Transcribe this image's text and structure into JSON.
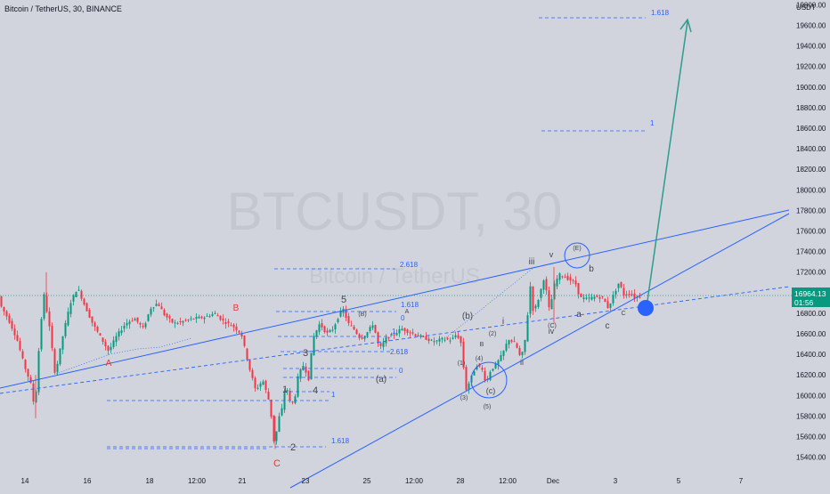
{
  "header": {
    "title": "Bitcoin / TetherUS, 30, BINANCE"
  },
  "watermark": {
    "symbol": "BTCUSDT, 30",
    "name": "Bitcoin / TetherUS"
  },
  "price_axis": {
    "currency": "USDT",
    "last_price": "16964.13",
    "countdown": "01:56",
    "last_price_color": "#089981"
  },
  "colors": {
    "background": "#d1d4dc",
    "candle_up": "#089981",
    "candle_down": "#f23645",
    "trendline": "#2962ff",
    "projection_arrow": "#2e9c8e",
    "wave_label_red": "#e53935",
    "wave_label_dark": "#434651",
    "fib_label": "#2962ff"
  },
  "chart_data": {
    "type": "candlestick",
    "symbol": "BTCUSDT",
    "timeframe": "30",
    "exchange": "BINANCE",
    "x_ticks": [
      "14",
      "16",
      "18",
      "12:00",
      "21",
      "23",
      "25",
      "12:00",
      "28",
      "12:00",
      "Dec",
      "3",
      "5",
      "7"
    ],
    "y_ticks": [
      20000,
      19800,
      19600,
      19400,
      19200,
      19000,
      18800,
      18600,
      18400,
      18200,
      18000,
      17800,
      17600,
      17400,
      17200,
      17000,
      16800,
      16600,
      16400,
      16200,
      16000,
      15800,
      15600,
      15400
    ],
    "ylim": [
      15340,
      20100
    ],
    "grid": false,
    "price_path": [
      [
        0,
        16900
      ],
      [
        10,
        16750
      ],
      [
        20,
        16550
      ],
      [
        28,
        16300
      ],
      [
        36,
        16100
      ],
      [
        40,
        15850
      ],
      [
        45,
        16500
      ],
      [
        50,
        17000
      ],
      [
        56,
        16700
      ],
      [
        63,
        16200
      ],
      [
        72,
        16600
      ],
      [
        80,
        16900
      ],
      [
        88,
        17050
      ],
      [
        95,
        16900
      ],
      [
        105,
        16700
      ],
      [
        115,
        16550
      ],
      [
        123,
        16430
      ],
      [
        132,
        16580
      ],
      [
        142,
        16700
      ],
      [
        152,
        16750
      ],
      [
        162,
        16650
      ],
      [
        170,
        16850
      ],
      [
        178,
        16900
      ],
      [
        186,
        16780
      ],
      [
        196,
        16700
      ],
      [
        206,
        16720
      ],
      [
        218,
        16750
      ],
      [
        230,
        16760
      ],
      [
        242,
        16800
      ],
      [
        252,
        16720
      ],
      [
        262,
        16680
      ],
      [
        272,
        16600
      ],
      [
        280,
        16300
      ],
      [
        288,
        16050
      ],
      [
        296,
        16150
      ],
      [
        304,
        15920
      ],
      [
        309,
        15520
      ],
      [
        314,
        15780
      ],
      [
        318,
        15880
      ],
      [
        322,
        16120
      ],
      [
        326,
        15950
      ],
      [
        331,
        15920
      ],
      [
        336,
        16200
      ],
      [
        342,
        16300
      ],
      [
        348,
        16150
      ],
      [
        352,
        16550
      ],
      [
        360,
        16700
      ],
      [
        368,
        16600
      ],
      [
        375,
        16650
      ],
      [
        380,
        16750
      ],
      [
        386,
        16850
      ],
      [
        392,
        16700
      ],
      [
        398,
        16650
      ],
      [
        406,
        16550
      ],
      [
        414,
        16620
      ],
      [
        420,
        16700
      ],
      [
        427,
        16450
      ],
      [
        435,
        16560
      ],
      [
        444,
        16600
      ],
      [
        452,
        16650
      ],
      [
        460,
        16620
      ],
      [
        470,
        16580
      ],
      [
        478,
        16560
      ],
      [
        488,
        16520
      ],
      [
        498,
        16550
      ],
      [
        508,
        16540
      ],
      [
        514,
        16600
      ],
      [
        519,
        16500
      ],
      [
        524,
        16050
      ],
      [
        530,
        16170
      ],
      [
        536,
        16300
      ],
      [
        542,
        16260
      ],
      [
        547,
        16120
      ],
      [
        552,
        16250
      ],
      [
        558,
        16300
      ],
      [
        565,
        16400
      ],
      [
        572,
        16550
      ],
      [
        580,
        16500
      ],
      [
        586,
        16350
      ],
      [
        592,
        16600
      ],
      [
        596,
        17100
      ],
      [
        600,
        16800
      ],
      [
        606,
        16950
      ],
      [
        612,
        17150
      ],
      [
        618,
        16820
      ],
      [
        624,
        17100
      ],
      [
        630,
        17180
      ],
      [
        636,
        17150
      ],
      [
        642,
        17120
      ],
      [
        648,
        17080
      ],
      [
        652,
        16950
      ],
      [
        660,
        16940
      ],
      [
        670,
        16960
      ],
      [
        678,
        16950
      ],
      [
        684,
        16850
      ],
      [
        690,
        16980
      ],
      [
        696,
        17100
      ],
      [
        702,
        16970
      ],
      [
        708,
        17000
      ],
      [
        714,
        16950
      ],
      [
        718,
        16964
      ]
    ],
    "wave_labels": [
      {
        "text": "A",
        "color": "red"
      },
      {
        "text": "B",
        "color": "red"
      },
      {
        "text": "C",
        "color": "red"
      },
      {
        "text": "1"
      },
      {
        "text": "2"
      },
      {
        "text": "3"
      },
      {
        "text": "4"
      },
      {
        "text": "5"
      },
      {
        "text": "(a)"
      },
      {
        "text": "(b)"
      },
      {
        "text": "(c)"
      },
      {
        "text": "(B)"
      },
      {
        "text": "(C)"
      },
      {
        "text": "(E)"
      },
      {
        "text": "A"
      },
      {
        "text": "B"
      },
      {
        "text": "C"
      },
      {
        "text": "(1)"
      },
      {
        "text": "(2)"
      },
      {
        "text": "(3)"
      },
      {
        "text": "(4)"
      },
      {
        "text": "(5)"
      },
      {
        "text": "i"
      },
      {
        "text": "ii"
      },
      {
        "text": "iii"
      },
      {
        "text": "iv"
      },
      {
        "text": "v"
      },
      {
        "text": "a"
      },
      {
        "text": "b"
      },
      {
        "text": "c"
      }
    ],
    "fib_levels": [
      {
        "text": "1.618"
      },
      {
        "text": "1"
      },
      {
        "text": "2.618"
      },
      {
        "text": "1.618"
      },
      {
        "text": "1"
      },
      {
        "text": "0"
      },
      {
        "text": "2.618"
      },
      {
        "text": "0"
      },
      {
        "text": "1"
      },
      {
        "text": "1.618"
      }
    ]
  }
}
